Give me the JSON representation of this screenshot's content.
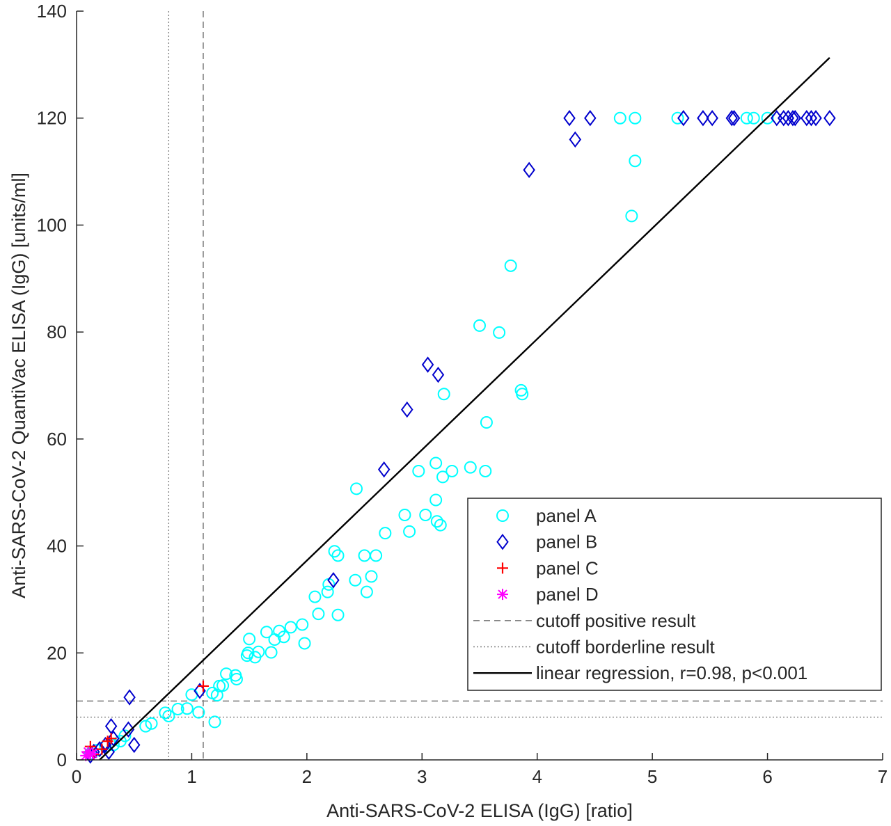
{
  "chart_data": {
    "type": "scatter",
    "xlabel": "Anti-SARS-CoV-2 ELISA (IgG) [ratio]",
    "ylabel": "Anti-SARS-CoV-2 QuantiVac ELISA (IgG) [units/ml]",
    "xlim": [
      0,
      7
    ],
    "ylim": [
      0,
      140
    ],
    "xticks": [
      "0",
      "1",
      "2",
      "3",
      "4",
      "5",
      "6",
      "7"
    ],
    "yticks": [
      "0",
      "20",
      "40",
      "60",
      "80",
      "100",
      "120",
      "140"
    ],
    "grid": false,
    "legend_position": "bottom-right",
    "series": [
      {
        "name": "panel A",
        "marker": "circle",
        "color": "#00FFFF",
        "points": [
          [
            0.12,
            1.2
          ],
          [
            0.18,
            1.8
          ],
          [
            0.25,
            2.5
          ],
          [
            0.32,
            2.8
          ],
          [
            0.38,
            3.5
          ],
          [
            0.42,
            4.5
          ],
          [
            0.6,
            6.3
          ],
          [
            0.65,
            6.8
          ],
          [
            0.77,
            8.8
          ],
          [
            0.8,
            8.2
          ],
          [
            0.88,
            9.5
          ],
          [
            0.96,
            9.6
          ],
          [
            1.0,
            12.2
          ],
          [
            1.06,
            8.9
          ],
          [
            1.18,
            12.5
          ],
          [
            1.2,
            7.1
          ],
          [
            1.22,
            12.1
          ],
          [
            1.24,
            13.8
          ],
          [
            1.27,
            13.9
          ],
          [
            1.3,
            16.1
          ],
          [
            1.38,
            15.8
          ],
          [
            1.39,
            15.1
          ],
          [
            1.48,
            19.5
          ],
          [
            1.49,
            20.0
          ],
          [
            1.5,
            22.6
          ],
          [
            1.55,
            19.2
          ],
          [
            1.58,
            20.2
          ],
          [
            1.65,
            23.9
          ],
          [
            1.69,
            20.1
          ],
          [
            1.72,
            22.5
          ],
          [
            1.76,
            24.1
          ],
          [
            1.8,
            23.0
          ],
          [
            1.86,
            24.8
          ],
          [
            1.96,
            25.3
          ],
          [
            1.98,
            21.8
          ],
          [
            2.07,
            30.5
          ],
          [
            2.1,
            27.3
          ],
          [
            2.18,
            31.4
          ],
          [
            2.19,
            32.8
          ],
          [
            2.24,
            39.0
          ],
          [
            2.27,
            38.2
          ],
          [
            2.27,
            27.1
          ],
          [
            2.42,
            33.6
          ],
          [
            2.43,
            50.7
          ],
          [
            2.5,
            38.2
          ],
          [
            2.52,
            31.4
          ],
          [
            2.56,
            34.3
          ],
          [
            2.6,
            38.2
          ],
          [
            2.68,
            42.4
          ],
          [
            2.85,
            45.8
          ],
          [
            2.89,
            42.7
          ],
          [
            2.97,
            54.0
          ],
          [
            3.03,
            45.8
          ],
          [
            3.12,
            48.6
          ],
          [
            3.12,
            55.5
          ],
          [
            3.13,
            44.6
          ],
          [
            3.16,
            43.9
          ],
          [
            3.18,
            52.9
          ],
          [
            3.19,
            68.4
          ],
          [
            3.26,
            54.0
          ],
          [
            3.42,
            54.7
          ],
          [
            3.5,
            81.2
          ],
          [
            3.55,
            54.0
          ],
          [
            3.56,
            63.1
          ],
          [
            3.67,
            79.9
          ],
          [
            3.77,
            92.4
          ],
          [
            3.86,
            69.1
          ],
          [
            3.87,
            68.4
          ],
          [
            4.72,
            120.0
          ],
          [
            4.82,
            101.7
          ],
          [
            4.85,
            112.0
          ],
          [
            4.85,
            120.0
          ],
          [
            5.22,
            120.0
          ],
          [
            5.82,
            120.0
          ],
          [
            5.88,
            120.0
          ],
          [
            6.0,
            120.0
          ]
        ]
      },
      {
        "name": "panel B",
        "marker": "diamond",
        "color": "#0000CD",
        "points": [
          [
            0.12,
            0.8
          ],
          [
            0.15,
            1.5
          ],
          [
            0.2,
            2.0
          ],
          [
            0.25,
            2.8
          ],
          [
            0.28,
            1.5
          ],
          [
            0.3,
            6.3
          ],
          [
            0.32,
            4.0
          ],
          [
            0.45,
            5.7
          ],
          [
            0.46,
            11.7
          ],
          [
            0.5,
            2.8
          ],
          [
            1.07,
            12.9
          ],
          [
            2.23,
            33.6
          ],
          [
            2.67,
            54.3
          ],
          [
            2.87,
            65.5
          ],
          [
            3.05,
            73.9
          ],
          [
            3.14,
            72.0
          ],
          [
            3.93,
            110.3
          ],
          [
            4.28,
            120.0
          ],
          [
            4.33,
            116.0
          ],
          [
            4.46,
            120.0
          ],
          [
            5.27,
            120.0
          ],
          [
            5.44,
            120.0
          ],
          [
            5.52,
            120.0
          ],
          [
            5.69,
            120.0
          ],
          [
            5.71,
            120.0
          ],
          [
            6.08,
            120.0
          ],
          [
            6.14,
            120.0
          ],
          [
            6.18,
            120.0
          ],
          [
            6.22,
            120.0
          ],
          [
            6.24,
            120.0
          ],
          [
            6.34,
            120.0
          ],
          [
            6.38,
            120.0
          ],
          [
            6.42,
            120.0
          ],
          [
            6.54,
            120.0
          ]
        ]
      },
      {
        "name": "panel C",
        "marker": "plus",
        "color": "#FF0000",
        "points": [
          [
            0.1,
            1.5
          ],
          [
            0.12,
            2.5
          ],
          [
            0.15,
            1.0
          ],
          [
            0.22,
            2.0
          ],
          [
            0.27,
            3.5
          ],
          [
            0.3,
            4.0
          ],
          [
            1.1,
            13.8
          ]
        ]
      },
      {
        "name": "panel D",
        "marker": "asterisk",
        "color": "#FF00FF",
        "points": [
          [
            0.08,
            0.8
          ],
          [
            0.1,
            1.5
          ],
          [
            0.12,
            1.0
          ],
          [
            0.14,
            1.2
          ]
        ]
      }
    ],
    "reference_lines": [
      {
        "name": "cutoff positive result",
        "style": "dashed",
        "color": "#808080",
        "x": 1.1,
        "y": 11.0
      },
      {
        "name": "cutoff borderline result",
        "style": "dotted",
        "color": "#808080",
        "x": 0.8,
        "y": 8.0
      }
    ],
    "regression": {
      "name": "linear regression, r=0.98, p<0.001",
      "color": "#000000",
      "x0": 0.2,
      "y0": 0.0,
      "x1": 6.54,
      "y1": 131.3
    }
  }
}
